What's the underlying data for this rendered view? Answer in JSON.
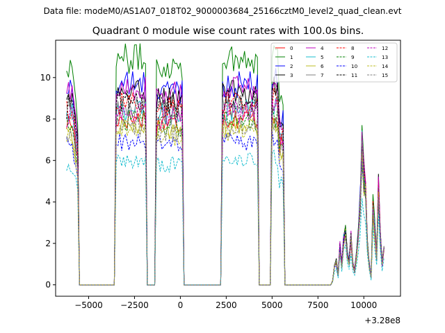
{
  "chart_data": {
    "type": "line",
    "suptitle": "Data file: modeM0/AS1A07_018T02_9000003684_25166cztM0_level2_quad_clean.evt",
    "title": "Quadrant 0 module wise count rates with 100.0s bins.",
    "xlabel": "",
    "ylabel": "",
    "x_offset_label": "+3.28e8",
    "xlim": [
      -6800,
      12000
    ],
    "ylim": [
      -0.55,
      11.8
    ],
    "xticks": [
      -5000,
      -2500,
      0,
      2500,
      5000,
      7500,
      10000
    ],
    "xtick_labels": [
      "−5000",
      "−2500",
      "0",
      "2500",
      "5000",
      "7500",
      "10000"
    ],
    "yticks": [
      0,
      2,
      4,
      6,
      8,
      10
    ],
    "ytick_labels": [
      "0",
      "2",
      "4",
      "6",
      "8",
      "10"
    ],
    "grid": false,
    "legend_position": "top-right",
    "legend_columns": 4,
    "segments": [
      {
        "start": -6200,
        "end": -5600
      },
      {
        "start": -3500,
        "end": -1900
      },
      {
        "start": -1300,
        "end": 100
      },
      {
        "start": 2300,
        "end": 4200
      },
      {
        "start": 4950,
        "end": 5650
      },
      {
        "start": 8300,
        "end": 11100
      }
    ],
    "segment_levels": [
      1.0,
      1.03,
      1.0,
      1.03,
      1.05
    ],
    "late_activity_shape": {
      "x": [
        8300,
        8400,
        8500,
        8600,
        8700,
        8800,
        8900,
        9000,
        9100,
        9200,
        9300,
        9400,
        9500,
        9600,
        9700,
        9800,
        9900,
        10000,
        10100,
        10200,
        10300,
        10400,
        10500,
        10600,
        10700,
        10800,
        10900,
        11000,
        11100
      ],
      "y": [
        0.2,
        0.9,
        1.2,
        0.5,
        2.0,
        1.0,
        2.3,
        2.8,
        1.6,
        1.2,
        2.4,
        1.1,
        0.7,
        1.5,
        2.5,
        4.2,
        7.0,
        5.5,
        4.8,
        2.0,
        1.0,
        0.4,
        3.9,
        2.8,
        1.4,
        4.9,
        2.4,
        1.1,
        2.0
      ]
    },
    "series": [
      {
        "name": "0",
        "color": "#ff0000",
        "dash": "solid",
        "base": 7.8
      },
      {
        "name": "1",
        "color": "#008000",
        "dash": "solid",
        "base": 10.6
      },
      {
        "name": "2",
        "color": "#0000ff",
        "dash": "solid",
        "base": 9.4
      },
      {
        "name": "3",
        "color": "#000000",
        "dash": "solid",
        "base": 9.0
      },
      {
        "name": "4",
        "color": "#bf00bf",
        "dash": "solid",
        "base": 9.2
      },
      {
        "name": "5",
        "color": "#17becf",
        "dash": "solid",
        "base": 8.2
      },
      {
        "name": "6",
        "color": "#bcbd22",
        "dash": "solid",
        "base": 7.4
      },
      {
        "name": "7",
        "color": "#7f7f7f",
        "dash": "solid",
        "base": 8.3
      },
      {
        "name": "8",
        "color": "#ff0000",
        "dash": "dashed",
        "base": 8.5
      },
      {
        "name": "9",
        "color": "#008000",
        "dash": "dashed",
        "base": 7.7
      },
      {
        "name": "10",
        "color": "#0000ff",
        "dash": "dashed",
        "base": 6.7
      },
      {
        "name": "11",
        "color": "#000000",
        "dash": "dashed",
        "base": 8.6
      },
      {
        "name": "12",
        "color": "#bf00bf",
        "dash": "dashed",
        "base": 8.1
      },
      {
        "name": "13",
        "color": "#17becf",
        "dash": "dashed",
        "base": 5.8
      },
      {
        "name": "14",
        "color": "#bcbd22",
        "dash": "dashed",
        "base": 7.2
      },
      {
        "name": "15",
        "color": "#7f7f7f",
        "dash": "dashed",
        "base": 7.4
      }
    ]
  }
}
